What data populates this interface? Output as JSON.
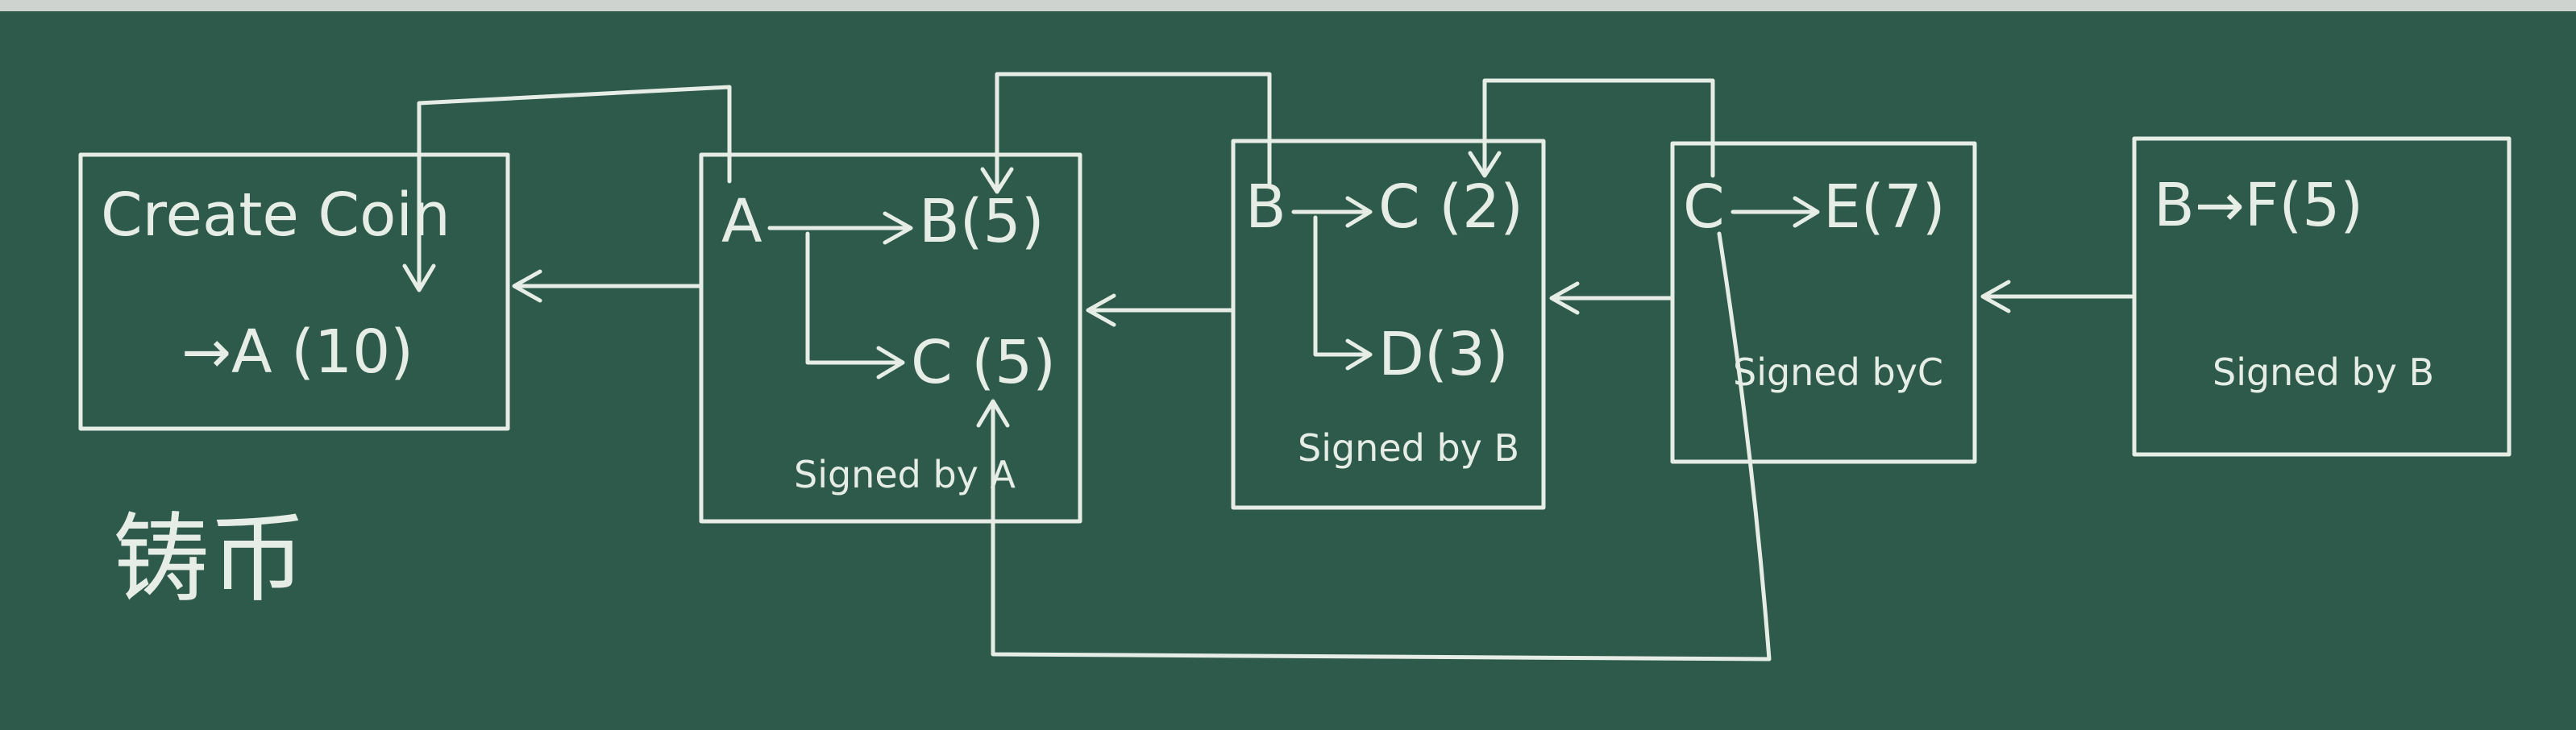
{
  "blocks": [
    {
      "lines": [
        "Create Coin",
        "→A (10)"
      ]
    },
    {
      "lines": [
        "A",
        "B(5)",
        "C (5)"
      ],
      "signature": "Signed by A"
    },
    {
      "lines": [
        "B",
        "C (2)",
        "D(3)"
      ],
      "signature": "Signed by B"
    },
    {
      "lines": [
        "C",
        "E(7)"
      ],
      "signature": "Signed byC"
    },
    {
      "lines": [
        "B→F(5)"
      ],
      "signature": "Signed by B"
    }
  ],
  "note": "铸币",
  "colors": {
    "board": "#2d5a4b",
    "chalk": "#e6ece6",
    "frame": "#cfd3d0"
  }
}
